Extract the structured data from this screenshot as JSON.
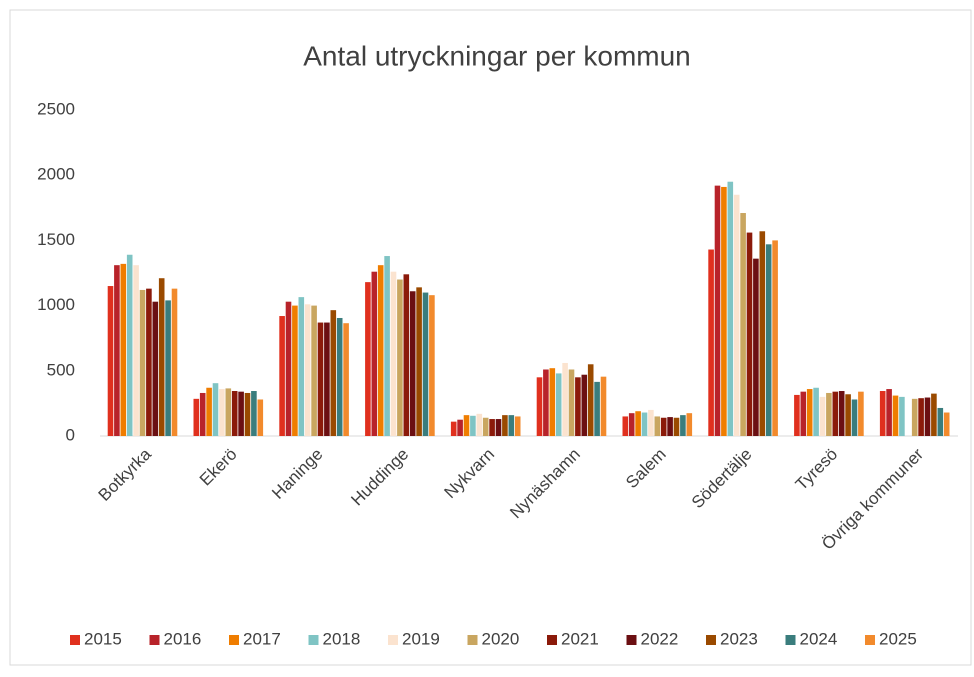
{
  "chart_data": {
    "type": "bar",
    "title": "Antal utryckningar per kommun",
    "categories": [
      "Botkyrka",
      "Ekerö",
      "Haninge",
      "Huddinge",
      "Nykvarn",
      "Nynäshamn",
      "Salem",
      "Södertälje",
      "Tyresö",
      "Övriga kommuner"
    ],
    "series": [
      {
        "name": "2015",
        "color": "#e0301e",
        "values": [
          1150,
          285,
          920,
          1180,
          110,
          450,
          150,
          1430,
          315,
          345
        ]
      },
      {
        "name": "2016",
        "color": "#b8232a",
        "values": [
          1310,
          330,
          1030,
          1260,
          125,
          510,
          175,
          1920,
          340,
          360
        ]
      },
      {
        "name": "2017",
        "color": "#ef7d00",
        "values": [
          1320,
          370,
          1000,
          1310,
          160,
          520,
          190,
          1910,
          360,
          310
        ]
      },
      {
        "name": "2018",
        "color": "#7fc4c4",
        "values": [
          1390,
          405,
          1065,
          1380,
          155,
          480,
          180,
          1950,
          370,
          300
        ]
      },
      {
        "name": "2019",
        "color": "#fbe3cf",
        "values": [
          1310,
          360,
          1010,
          1260,
          170,
          560,
          200,
          1850,
          300,
          null
        ]
      },
      {
        "name": "2020",
        "color": "#c9a660",
        "values": [
          1120,
          365,
          1000,
          1200,
          140,
          510,
          150,
          1710,
          330,
          285
        ]
      },
      {
        "name": "2021",
        "color": "#8b1a0a",
        "values": [
          1130,
          345,
          870,
          1240,
          130,
          450,
          140,
          1560,
          340,
          290
        ]
      },
      {
        "name": "2022",
        "color": "#6b0f12",
        "values": [
          1030,
          340,
          870,
          1110,
          130,
          470,
          145,
          1360,
          345,
          295
        ]
      },
      {
        "name": "2023",
        "color": "#9a4a00",
        "values": [
          1210,
          330,
          965,
          1140,
          160,
          550,
          140,
          1570,
          320,
          325
        ]
      },
      {
        "name": "2024",
        "color": "#3a7d7d",
        "values": [
          1040,
          345,
          905,
          1100,
          160,
          415,
          160,
          1470,
          280,
          215
        ]
      },
      {
        "name": "2025",
        "color": "#f28a2c",
        "values": [
          1130,
          280,
          865,
          1080,
          150,
          455,
          175,
          1500,
          340,
          180
        ]
      }
    ],
    "ylim": [
      0,
      2500
    ],
    "yticks": [
      0,
      500,
      1000,
      1500,
      2000,
      2500
    ],
    "grid": false,
    "legend": "bottom"
  }
}
